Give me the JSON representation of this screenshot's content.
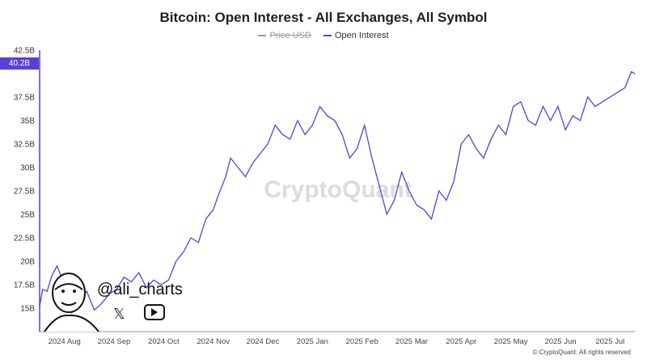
{
  "chart_data": {
    "type": "line",
    "title": "Bitcoin: Open Interest - All Exchanges, All Symbol",
    "legend": [
      {
        "name": "Price USD",
        "color": "#9a9a9a",
        "visible": false
      },
      {
        "name": "Open Interest",
        "color": "#5b3fd6",
        "visible": true
      }
    ],
    "y_ticks": [
      15,
      17.5,
      20,
      22.5,
      25,
      27.5,
      30,
      32.5,
      35,
      37.5,
      42.5
    ],
    "y_tick_labels": [
      "15B",
      "17.5B",
      "20B",
      "22.5B",
      "25B",
      "27.5B",
      "30B",
      "32.5B",
      "35B",
      "37.5B",
      "42.5B"
    ],
    "y_unit": "B",
    "ylim": [
      12.5,
      42.5
    ],
    "xlim": [
      0,
      12
    ],
    "x_ticks": [
      0.5,
      1.5,
      2.5,
      3.5,
      4.5,
      5.5,
      6.5,
      7.5,
      8.5,
      9.5,
      10.5,
      11.5
    ],
    "x_tick_labels": [
      "2024 Aug",
      "2024 Sep",
      "2024 Oct",
      "2024 Nov",
      "2024 Dec",
      "2025 Jan",
      "2025 Feb",
      "2025 Mar",
      "2025 Apr",
      "2025 May",
      "2025 Jun",
      "2025 Jul"
    ],
    "current_value_label": "40.2B",
    "series": [
      {
        "name": "Open Interest",
        "color": "#5b3fd6",
        "x": [
          0,
          0.06,
          0.15,
          0.25,
          0.35,
          0.45,
          0.55,
          0.65,
          0.8,
          0.95,
          1.1,
          1.25,
          1.4,
          1.55,
          1.7,
          1.85,
          2.0,
          2.15,
          2.3,
          2.45,
          2.6,
          2.75,
          2.9,
          3.05,
          3.2,
          3.35,
          3.5,
          3.6,
          3.75,
          3.85,
          4.0,
          4.15,
          4.3,
          4.45,
          4.6,
          4.75,
          4.9,
          5.05,
          5.2,
          5.35,
          5.5,
          5.65,
          5.8,
          5.95,
          6.1,
          6.25,
          6.4,
          6.55,
          6.7,
          6.85,
          7.0,
          7.15,
          7.3,
          7.45,
          7.6,
          7.75,
          7.9,
          8.05,
          8.2,
          8.35,
          8.5,
          8.65,
          8.8,
          8.95,
          9.1,
          9.25,
          9.4,
          9.55,
          9.7,
          9.85,
          10.0,
          10.15,
          10.3,
          10.45,
          10.6,
          10.75,
          10.9,
          11.05,
          11.2,
          11.35,
          11.5,
          11.65,
          11.8,
          11.93,
          12.0
        ],
        "values": [
          15.2,
          17.0,
          16.8,
          18.5,
          19.5,
          18.2,
          16.0,
          14.5,
          15.8,
          16.8,
          14.8,
          15.5,
          16.5,
          17.0,
          18.3,
          17.8,
          18.8,
          17.2,
          18.0,
          17.5,
          18.0,
          20.0,
          21.0,
          22.5,
          22.0,
          24.5,
          25.5,
          27.0,
          29.0,
          31.0,
          30.0,
          29.0,
          30.5,
          31.5,
          32.5,
          34.5,
          33.5,
          33.0,
          35.0,
          33.5,
          34.5,
          36.5,
          35.5,
          35.0,
          33.5,
          31.0,
          32.0,
          34.5,
          31.0,
          28.0,
          25.0,
          26.5,
          29.5,
          27.5,
          26.0,
          25.5,
          24.5,
          27.5,
          26.5,
          28.5,
          32.5,
          33.5,
          32.0,
          31.0,
          33.0,
          34.5,
          33.5,
          36.5,
          37.0,
          35.0,
          34.5,
          36.5,
          35.0,
          36.5,
          34.0,
          35.5,
          35.0,
          37.5,
          36.5,
          37.0,
          37.5,
          38.0,
          38.5,
          40.2,
          40.0
        ]
      }
    ]
  },
  "watermark": "CryptoQuant",
  "copyright": "© CryptoQuant. All rights reserved",
  "author": {
    "handle": "@ali_charts",
    "social_icons": [
      "x-icon",
      "youtube-icon"
    ]
  }
}
